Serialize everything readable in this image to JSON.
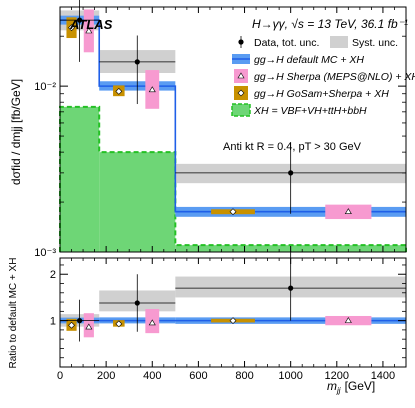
{
  "chart_data": {
    "type": "bar",
    "xlabel": "m",
    "xlabel_sub": "jj",
    "xlabel_unit": "[GeV]",
    "ylabel_top": "dσfid / dmjj  [fb/GeV]",
    "ylabel_bottom": "Ratio to default MC + XH",
    "experiment_label": "ATLAS",
    "process_label": "H→γγ, √s = 13 TeV, 36.1 fb⁻¹",
    "jet_label": "Anti kt R = 0.4, pT > 30 GeV",
    "x_scale": "linear",
    "xlim": [
      0,
      1500
    ],
    "x_ticks": [
      0,
      200,
      400,
      600,
      800,
      1000,
      1200,
      1400
    ],
    "y_scale_top": "log",
    "ylim_top": [
      0.001,
      0.03
    ],
    "y_ticks_top": [
      {
        "value": 0.001,
        "label": "10⁻³"
      },
      {
        "value": 0.01,
        "label": "10⁻²"
      }
    ],
    "ylim_bottom": [
      0,
      2.35
    ],
    "y_ticks_bottom": [
      1,
      2
    ],
    "bins": [
      [
        0,
        170
      ],
      [
        170,
        500
      ],
      [
        500,
        1500
      ]
    ],
    "legend": [
      {
        "label": "Data, tot. unc.",
        "style": "data"
      },
      {
        "label": "Syst. unc.",
        "style": "syst"
      },
      {
        "label": "gg→H default MC + XH",
        "style": "default_mc"
      },
      {
        "label": "gg→H Sherpa (MEPS@NLO) + XH",
        "style": "sherpa"
      },
      {
        "label": "gg→H GoSam+Sherpa + XH",
        "style": "gosam"
      },
      {
        "label": "XH = VBF+VH+ttH+bbH",
        "style": "xh"
      }
    ],
    "series": [
      {
        "name": "Data, tot. unc.",
        "x": [
          85,
          335,
          1000
        ],
        "values": [
          0.025,
          0.014,
          0.003
        ],
        "err_lo": [
          0.011,
          0.0062,
          0.0013
        ],
        "err_hi": [
          0.011,
          0.0062,
          0.0016
        ],
        "syst_lo": [
          0.0217,
          0.012,
          0.0026
        ],
        "syst_hi": [
          0.0286,
          0.0165,
          0.0034
        ]
      },
      {
        "name": "gg→H default MC + XH",
        "values": [
          0.025,
          0.01,
          0.00175
        ],
        "band_lo": [
          0.0235,
          0.0094,
          0.00163
        ],
        "band_hi": [
          0.0266,
          0.0107,
          0.00187
        ]
      },
      {
        "name": "gg→H Sherpa (MEPS@NLO) + XH",
        "x": [
          125,
          400,
          1250
        ],
        "values": [
          0.0215,
          0.0095,
          0.00175
        ],
        "band_lo": [
          0.016,
          0.0073,
          0.00158
        ],
        "band_hi": [
          0.029,
          0.0125,
          0.00193
        ]
      },
      {
        "name": "gg→H GoSam+Sherpa + XH",
        "x": [
          50,
          255,
          750
        ],
        "values": [
          0.0225,
          0.0093,
          0.00175
        ],
        "band_lo": [
          0.0195,
          0.0087,
          0.00169
        ],
        "band_hi": [
          0.026,
          0.0101,
          0.00181
        ]
      },
      {
        "name": "XH = VBF+VH+ttH+bbH",
        "values": [
          0.0075,
          0.004,
          0.0011
        ]
      }
    ],
    "ratio": {
      "data": {
        "values": [
          1.0,
          1.38,
          1.7
        ],
        "err_lo": [
          0.45,
          0.62,
          0.7
        ],
        "err_hi": [
          0.45,
          0.62,
          0.8
        ],
        "syst_lo": [
          0.87,
          1.2,
          1.5
        ],
        "syst_hi": [
          1.14,
          1.65,
          1.95
        ]
      },
      "default_band": {
        "lo": [
          0.94,
          0.94,
          0.93
        ],
        "hi": [
          1.065,
          1.07,
          1.07
        ]
      },
      "sherpa": {
        "values": [
          0.86,
          0.95,
          1.0
        ],
        "band_lo": [
          0.64,
          0.73,
          0.9
        ],
        "band_hi": [
          1.16,
          1.25,
          1.1
        ]
      },
      "gosam": {
        "values": [
          0.9,
          0.93,
          1.0
        ],
        "band_lo": [
          0.78,
          0.87,
          0.96
        ],
        "band_hi": [
          1.04,
          1.01,
          1.04
        ]
      }
    },
    "colors": {
      "default_mc": "#1f5fe8",
      "default_band": "#5a9cf2",
      "sherpa": "#f79ad0",
      "gosam": "#c89100",
      "xh_fill": "#6ed676",
      "xh_line": "#24c024",
      "syst": "#d0d0d0",
      "data": "#000000"
    }
  }
}
